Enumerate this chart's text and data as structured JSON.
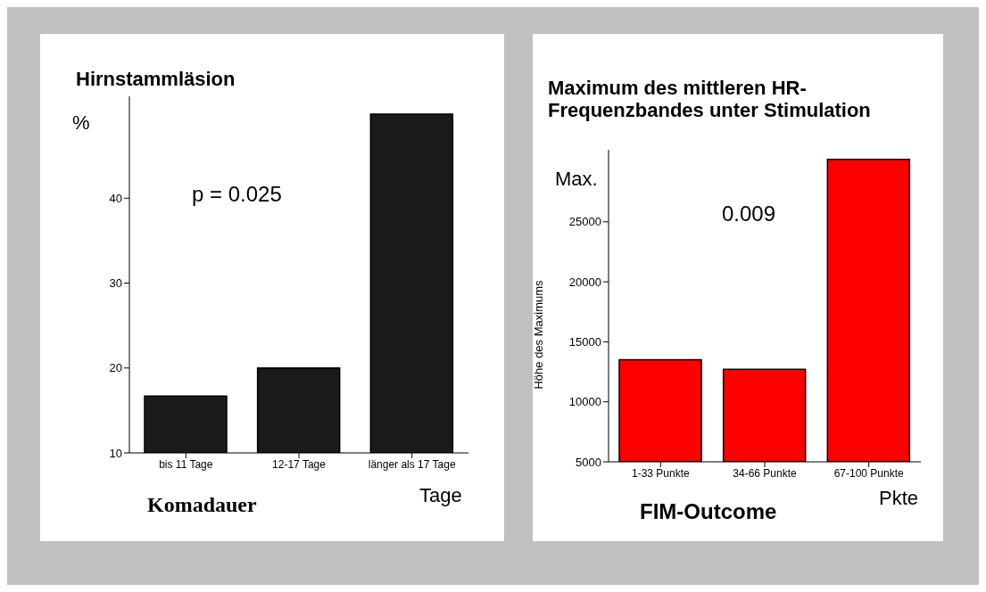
{
  "chart_data": [
    {
      "type": "bar",
      "title": "Hirnstammläsion",
      "ylabel": "%",
      "xlabel": "Komadauer",
      "categories": [
        "bis 11 Tage",
        "12-17 Tage",
        "länger als 17 Tage"
      ],
      "values": [
        16.7,
        20,
        49.9
      ],
      "color": "#1a1a1a",
      "ylim": [
        10,
        52
      ],
      "yticks": [
        10,
        20,
        30,
        40
      ],
      "annotations": [
        "p = 0.025",
        "Tage"
      ]
    },
    {
      "type": "bar",
      "title": "Maximum des mittleren HR-Frequenzbandes unter Stimulation",
      "ylabel": "Höhe des Maximums",
      "xlabel": "FIM-Outcome",
      "categories": [
        "1-33 Punkte",
        "34-66 Punkte",
        "67-100 Punkte"
      ],
      "values": [
        13500,
        12700,
        30200
      ],
      "color": "#ff0000",
      "ylim": [
        5000,
        31000
      ],
      "yticks": [
        5000,
        10000,
        15000,
        20000,
        25000
      ],
      "annotations": [
        "Max.",
        "0.009",
        "Pkte"
      ]
    }
  ]
}
